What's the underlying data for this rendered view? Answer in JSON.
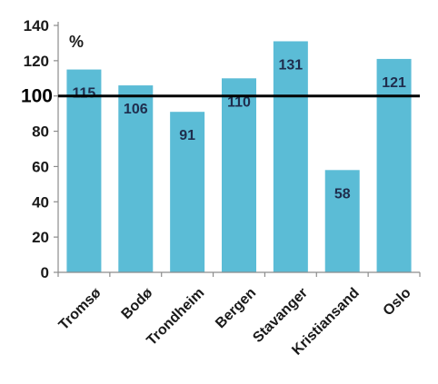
{
  "chart_data": {
    "type": "bar",
    "categories": [
      "Tromsø",
      "Bodø",
      "Trondheim",
      "Bergen",
      "Stavanger",
      "Kristiansand",
      "Oslo"
    ],
    "values": [
      115,
      106,
      91,
      110,
      131,
      58,
      121
    ],
    "data_labels": [
      "115",
      "106",
      "91",
      "110",
      "131",
      "58",
      "121"
    ],
    "unit_label": "%",
    "ylim": [
      0,
      140
    ],
    "yticks": [
      0,
      20,
      40,
      60,
      80,
      100,
      120,
      140
    ],
    "ytick_labels": [
      "0",
      "20",
      "40",
      "60",
      "80",
      "100",
      "120",
      "140"
    ],
    "reference_line": 100,
    "grid": false,
    "legend": "none",
    "colors": {
      "bar": "#5bbcd6",
      "reference_line": "#000000",
      "axis": "#8c8c8c",
      "data_label": "#1f2d4d"
    }
  }
}
